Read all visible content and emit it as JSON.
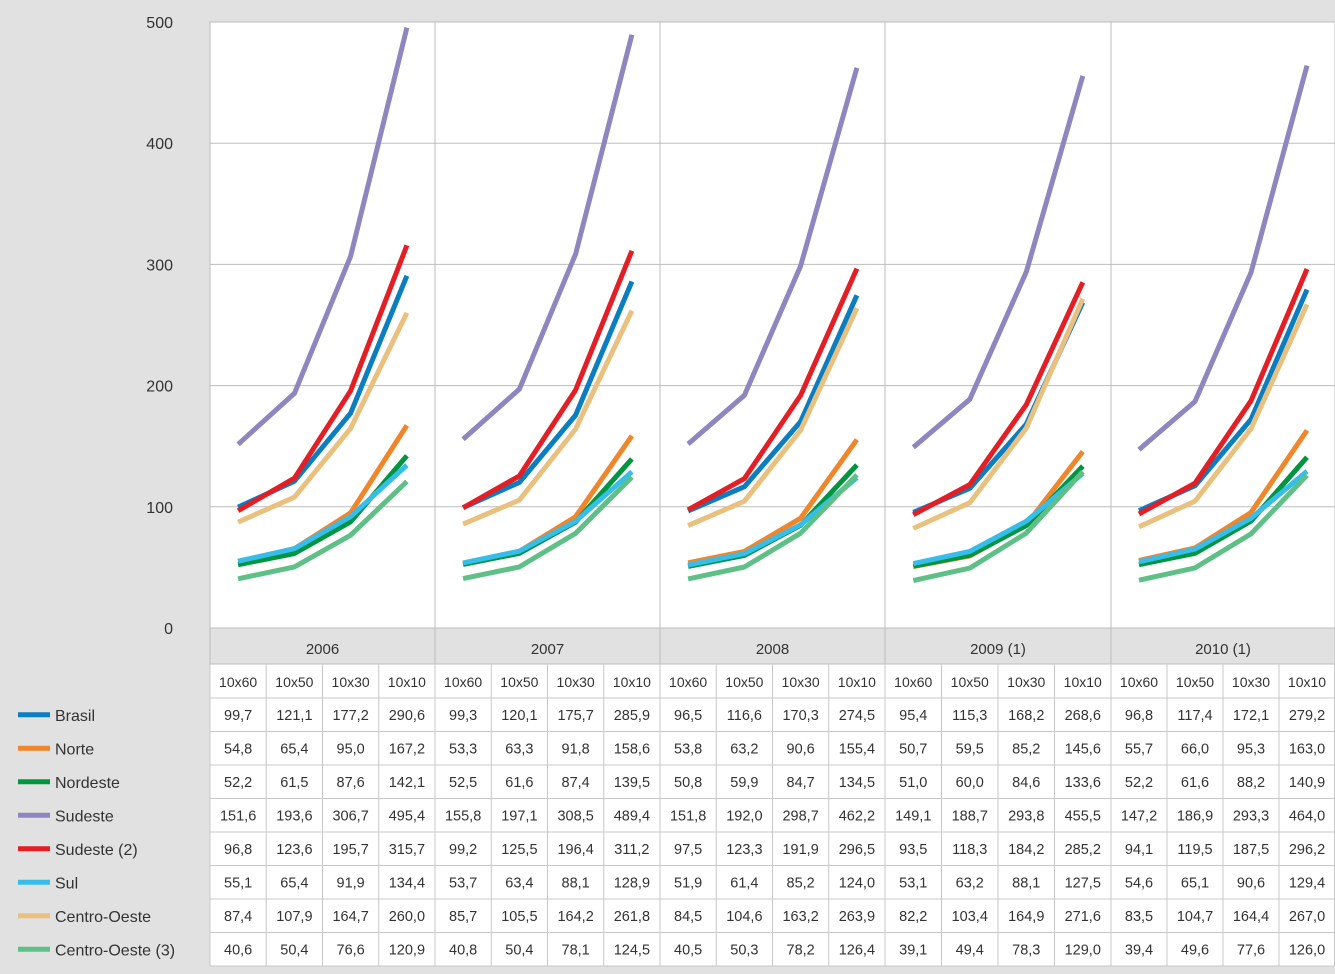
{
  "chart_data": {
    "type": "line",
    "ylim": [
      0,
      500
    ],
    "yticks": [
      0,
      100,
      200,
      300,
      400,
      500
    ],
    "grid": true,
    "legend_placement": "left of data table",
    "groups": [
      "2006",
      "2007",
      "2008",
      "2009 (1)",
      "2010 (1)"
    ],
    "sub_categories": [
      "10x60",
      "10x50",
      "10x30",
      "10x10"
    ],
    "series": [
      {
        "name": "Brasil",
        "color": "#0b7dc1",
        "values": [
          [
            99.7,
            121.1,
            177.2,
            290.6
          ],
          [
            99.3,
            120.1,
            175.7,
            285.9
          ],
          [
            96.5,
            116.6,
            170.3,
            274.5
          ],
          [
            95.4,
            115.3,
            168.2,
            268.6
          ],
          [
            96.8,
            117.4,
            172.1,
            279.2
          ]
        ]
      },
      {
        "name": "Norte",
        "color": "#f0862a",
        "values": [
          [
            54.8,
            65.4,
            95.0,
            167.2
          ],
          [
            53.3,
            63.3,
            91.8,
            158.6
          ],
          [
            53.8,
            63.2,
            90.6,
            155.4
          ],
          [
            50.7,
            59.5,
            85.2,
            145.6
          ],
          [
            55.7,
            66.0,
            95.3,
            163.0
          ]
        ]
      },
      {
        "name": "Nordeste",
        "color": "#00953f",
        "values": [
          [
            52.2,
            61.5,
            87.6,
            142.1
          ],
          [
            52.5,
            61.6,
            87.4,
            139.5
          ],
          [
            50.8,
            59.9,
            84.7,
            134.5
          ],
          [
            51.0,
            60.0,
            84.6,
            133.6
          ],
          [
            52.2,
            61.6,
            88.2,
            140.9
          ]
        ]
      },
      {
        "name": "Sudeste",
        "color": "#8f86c0",
        "values": [
          [
            151.6,
            193.6,
            306.7,
            495.4
          ],
          [
            155.8,
            197.1,
            308.5,
            489.4
          ],
          [
            151.8,
            192.0,
            298.7,
            462.2
          ],
          [
            149.1,
            188.7,
            293.8,
            455.5
          ],
          [
            147.2,
            186.9,
            293.3,
            464.0
          ]
        ]
      },
      {
        "name": "Sudeste (2)",
        "color": "#e31e24",
        "values": [
          [
            96.8,
            123.6,
            195.7,
            315.7
          ],
          [
            99.2,
            125.5,
            196.4,
            311.2
          ],
          [
            97.5,
            123.3,
            191.9,
            296.5
          ],
          [
            93.5,
            118.3,
            184.2,
            285.2
          ],
          [
            94.1,
            119.5,
            187.5,
            296.2
          ]
        ]
      },
      {
        "name": "Sul",
        "color": "#37bdea",
        "values": [
          [
            55.1,
            65.4,
            91.9,
            134.4
          ],
          [
            53.7,
            63.4,
            88.1,
            128.9
          ],
          [
            51.9,
            61.4,
            85.2,
            124.0
          ],
          [
            53.1,
            63.2,
            88.1,
            127.5
          ],
          [
            54.6,
            65.1,
            90.6,
            129.4
          ]
        ]
      },
      {
        "name": "Centro-Oeste",
        "color": "#e9c07e",
        "values": [
          [
            87.4,
            107.9,
            164.7,
            260.0
          ],
          [
            85.7,
            105.5,
            164.2,
            261.8
          ],
          [
            84.5,
            104.6,
            163.2,
            263.9
          ],
          [
            82.2,
            103.4,
            164.9,
            271.6
          ],
          [
            83.5,
            104.7,
            164.4,
            267.0
          ]
        ]
      },
      {
        "name": "Centro-Oeste (3)",
        "color": "#5ebf87",
        "values": [
          [
            40.6,
            50.4,
            76.6,
            120.9
          ],
          [
            40.8,
            50.4,
            78.1,
            124.5
          ],
          [
            40.5,
            50.3,
            78.2,
            126.4
          ],
          [
            39.1,
            49.4,
            78.3,
            129.0
          ],
          [
            39.4,
            49.6,
            77.6,
            126.0
          ]
        ]
      }
    ]
  }
}
